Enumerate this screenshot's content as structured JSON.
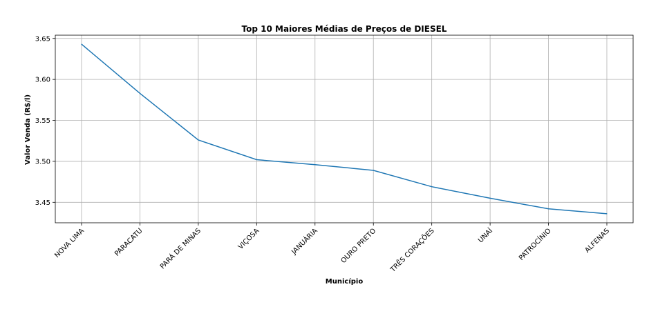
{
  "chart_data": {
    "type": "line",
    "title": "Top 10 Maiores Médias de Preços de DIESEL",
    "xlabel": "Município",
    "ylabel": "Valor Venda (R$/l)",
    "categories": [
      "NOVA LIMA",
      "PARACATU",
      "PARÁ DE MINAS",
      "VIÇOSA",
      "JANUÁRIA",
      "OURO PRETO",
      "TRÊS CORAÇÕES",
      "UNAÍ",
      "PATROCÍNIO",
      "ALFENAS"
    ],
    "series": [
      {
        "values": [
          3.643,
          3.583,
          3.526,
          3.502,
          3.496,
          3.489,
          3.469,
          3.455,
          3.442,
          3.436
        ]
      }
    ],
    "ylim": [
      3.425,
      3.654
    ],
    "yticks": [
      3.45,
      3.5,
      3.55,
      3.6,
      3.65
    ],
    "ytick_labels": [
      "3.45",
      "3.50",
      "3.55",
      "3.60",
      "3.65"
    ],
    "grid": true,
    "line_color": "#1f77b4"
  }
}
